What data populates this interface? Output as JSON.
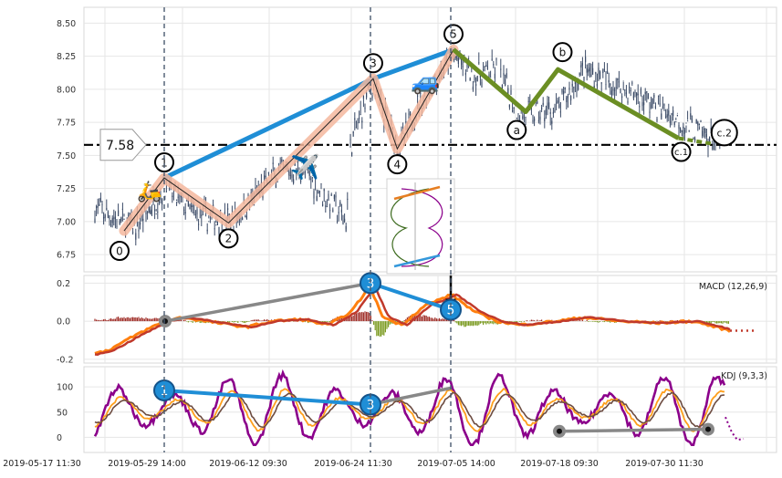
{
  "chart_data": [
    {
      "type": "candlestick",
      "panel": "price",
      "ylim": [
        6.62,
        8.62
      ],
      "yticks": [
        "6.75",
        "7.00",
        "7.25",
        "7.50",
        "7.75",
        "8.00",
        "8.25",
        "8.50"
      ],
      "ytick_values": [
        6.75,
        7.0,
        7.25,
        7.5,
        7.75,
        8.0,
        8.25,
        8.5
      ],
      "horizontal_line": {
        "value": 7.58,
        "label": "7.58"
      },
      "wave_main": [
        {
          "label": "0",
          "date": "2019-05-24",
          "value": 6.93
        },
        {
          "label": "1",
          "date": "2019-05-29",
          "value": 7.33
        },
        {
          "label": "2",
          "date": "2019-06-06",
          "value": 6.99
        },
        {
          "label": "3",
          "date": "2019-06-24",
          "value": 8.08
        },
        {
          "label": "4",
          "date": "2019-06-27",
          "value": 7.55
        },
        {
          "label": "5",
          "date": "2019-07-04",
          "value": 8.3
        }
      ],
      "wave_correction": [
        {
          "label": "5",
          "date": "2019-07-04",
          "value": 8.3
        },
        {
          "label": "a",
          "date": "2019-07-13",
          "value": 7.83
        },
        {
          "label": "b",
          "date": "2019-07-17",
          "value": 8.15
        },
        {
          "label": "c.1",
          "date": "2019-08-01",
          "value": 7.63
        },
        {
          "label": "c.2",
          "date": "2019-08-05",
          "value": 7.59
        }
      ],
      "trend_line": [
        {
          "label": "1",
          "value": 7.33
        },
        {
          "label": "3",
          "value": 8.08
        },
        {
          "label": "5",
          "value": 8.3
        }
      ],
      "colors": {
        "candles": "#3a4a66",
        "wave_main": "#f4b79e",
        "trend": "#1f8ed6",
        "correction": "#6b8e23",
        "hline": "#000000"
      }
    },
    {
      "type": "bar+line",
      "panel": "macd",
      "title": "MACD (12,26,9)",
      "ylim": [
        -0.22,
        0.24
      ],
      "yticks": [
        "0.2",
        "0.0",
        "-0.2"
      ],
      "ytick_values": [
        0.2,
        0.0,
        -0.2
      ],
      "divergence_markers": [
        {
          "label": "3",
          "value": 0.2
        },
        {
          "label": "5",
          "value": 0.06
        }
      ],
      "colors": {
        "macd": "#ff7f0e",
        "signal": "#c0392b",
        "hist_pos": "#a0302a",
        "hist_neg": "#7a9a20"
      }
    },
    {
      "type": "line",
      "panel": "kdj",
      "title": "KDJ (9,3,3)",
      "ylim": [
        -30,
        140
      ],
      "yticks": [
        "100",
        "50",
        "0"
      ],
      "ytick_values": [
        100,
        50,
        0
      ],
      "divergence_markers": [
        {
          "label": "1",
          "value": 93
        },
        {
          "label": "3",
          "value": 65
        }
      ],
      "colors": {
        "k": "#ff9f1c",
        "d": "#6d4c41",
        "j": "#8b008b"
      }
    }
  ],
  "x_axis": {
    "tick_labels": [
      "2019-05-17 11:30",
      "2019-05-29 14:00",
      "2019-06-12 09:30",
      "2019-06-24 11:30",
      "2019-07-05 14:00",
      "2019-07-18 09:30",
      "2019-07-30 11:30"
    ]
  },
  "icons": [
    "scooter-icon",
    "airplane-icon",
    "car-icon",
    "wave-pattern-thumbnail"
  ]
}
